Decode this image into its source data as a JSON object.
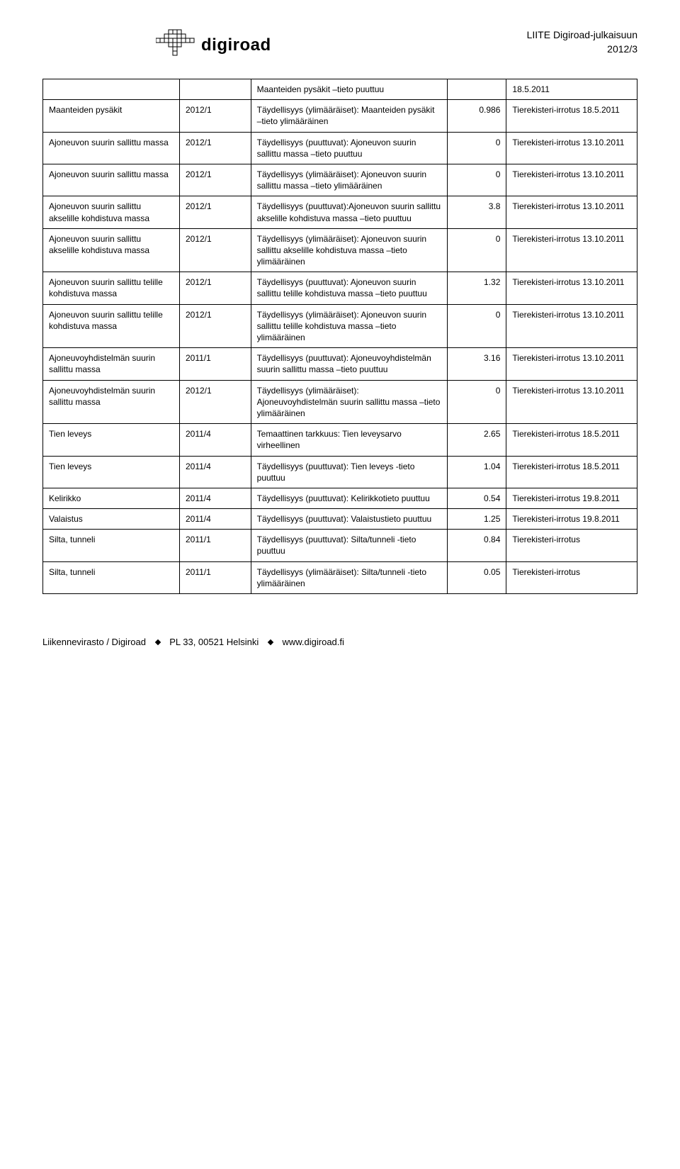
{
  "header": {
    "logo_text": "digiroad",
    "right_line1": "LIITE Digiroad-julkaisuun",
    "right_line2": "2012/3"
  },
  "table": {
    "col_widths": [
      "23%",
      "12%",
      "33%",
      "10%",
      "22%"
    ],
    "border_color": "#000000",
    "font_size": 12,
    "rows": [
      {
        "c1": "",
        "c2": "",
        "c3": "Maanteiden pysäkit –tieto puuttuu",
        "c4": "",
        "c5": "18.5.2011"
      },
      {
        "c1": "Maanteiden pysäkit",
        "c2": "2012/1",
        "c3": "Täydellisyys (ylimääräiset): Maanteiden pysäkit –tieto ylimääräinen",
        "c4": "0.986",
        "c5": "Tierekisteri-irrotus 18.5.2011"
      },
      {
        "c1": "Ajoneuvon suurin sallittu massa",
        "c2": "2012/1",
        "c3": "Täydellisyys (puuttuvat): Ajoneuvon suurin sallittu massa –tieto puuttuu",
        "c4": "0",
        "c5": "Tierekisteri-irrotus 13.10.2011"
      },
      {
        "c1": "Ajoneuvon suurin sallittu massa",
        "c2": "2012/1",
        "c3": "Täydellisyys (ylimääräiset): Ajoneuvon suurin sallittu massa –tieto ylimääräinen",
        "c4": "0",
        "c5": "Tierekisteri-irrotus 13.10.2011"
      },
      {
        "c1": "Ajoneuvon suurin sallittu akselille kohdistuva massa",
        "c2": "2012/1",
        "c3": "Täydellisyys (puuttuvat):Ajoneuvon suurin sallittu akselille kohdistuva massa –tieto puuttuu",
        "c4": "3.8",
        "c5": "Tierekisteri-irrotus 13.10.2011"
      },
      {
        "c1": "Ajoneuvon suurin sallittu akselille kohdistuva massa",
        "c2": "2012/1",
        "c3": "Täydellisyys (ylimääräiset): Ajoneuvon suurin sallittu akselille kohdistuva massa –tieto ylimääräinen",
        "c4": "0",
        "c5": "Tierekisteri-irrotus 13.10.2011"
      },
      {
        "c1": "Ajoneuvon suurin sallittu telille kohdistuva massa",
        "c2": "2012/1",
        "c3": "Täydellisyys (puuttuvat): Ajoneuvon suurin sallittu telille kohdistuva massa –tieto puuttuu",
        "c4": "1.32",
        "c5": "Tierekisteri-irrotus 13.10.2011"
      },
      {
        "c1": "Ajoneuvon suurin sallittu telille kohdistuva massa",
        "c2": "2012/1",
        "c3": "Täydellisyys (ylimääräiset): Ajoneuvon suurin sallittu telille kohdistuva massa –tieto ylimääräinen",
        "c4": "0",
        "c5": "Tierekisteri-irrotus 13.10.2011"
      },
      {
        "c1": "Ajoneuvoyhdistelmän suurin sallittu massa",
        "c2": "2011/1",
        "c3": "Täydellisyys (puuttuvat): Ajoneuvoyhdistelmän suurin sallittu massa –tieto puuttuu",
        "c4": "3.16",
        "c5": "Tierekisteri-irrotus 13.10.2011"
      },
      {
        "c1": "Ajoneuvoyhdistelmän suurin sallittu massa",
        "c2": "2012/1",
        "c3": "Täydellisyys (ylimääräiset): Ajoneuvoyhdistelmän suurin sallittu massa –tieto ylimääräinen",
        "c4": "0",
        "c5": "Tierekisteri-irrotus 13.10.2011"
      },
      {
        "c1": "Tien leveys",
        "c2": "2011/4",
        "c3": "Temaattinen tarkkuus: Tien leveysarvo virheellinen",
        "c4": "2.65",
        "c5": "Tierekisteri-irrotus 18.5.2011"
      },
      {
        "c1": "Tien leveys",
        "c2": "2011/4",
        "c3": "Täydellisyys (puuttuvat): Tien leveys -tieto puuttuu",
        "c4": "1.04",
        "c5": "Tierekisteri-irrotus 18.5.2011"
      },
      {
        "c1": "Kelirikko",
        "c2": "2011/4",
        "c3": "Täydellisyys (puuttuvat): Kelirikkotieto puuttuu",
        "c4": "0.54",
        "c5": "Tierekisteri-irrotus 19.8.2011"
      },
      {
        "c1": "Valaistus",
        "c2": "2011/4",
        "c3": "Täydellisyys (puuttuvat): Valaistustieto puuttuu",
        "c4": "1.25",
        "c5": "Tierekisteri-irrotus 19.8.2011"
      },
      {
        "c1": "Silta, tunneli",
        "c2": "2011/1",
        "c3": "Täydellisyys (puuttuvat): Silta/tunneli -tieto puuttuu",
        "c4": "0.84",
        "c5": "Tierekisteri-irrotus"
      },
      {
        "c1": "Silta, tunneli",
        "c2": "2011/1",
        "c3": "Täydellisyys (ylimääräiset): Silta/tunneli -tieto ylimääräinen",
        "c4": "0.05",
        "c5": "Tierekisteri-irrotus"
      }
    ]
  },
  "footer": {
    "part1": "Liikennevirasto / Digiroad",
    "part2": "PL 33, 00521 Helsinki",
    "part3": "www.digiroad.fi"
  },
  "colors": {
    "text": "#000000",
    "background": "#ffffff",
    "border": "#000000"
  }
}
